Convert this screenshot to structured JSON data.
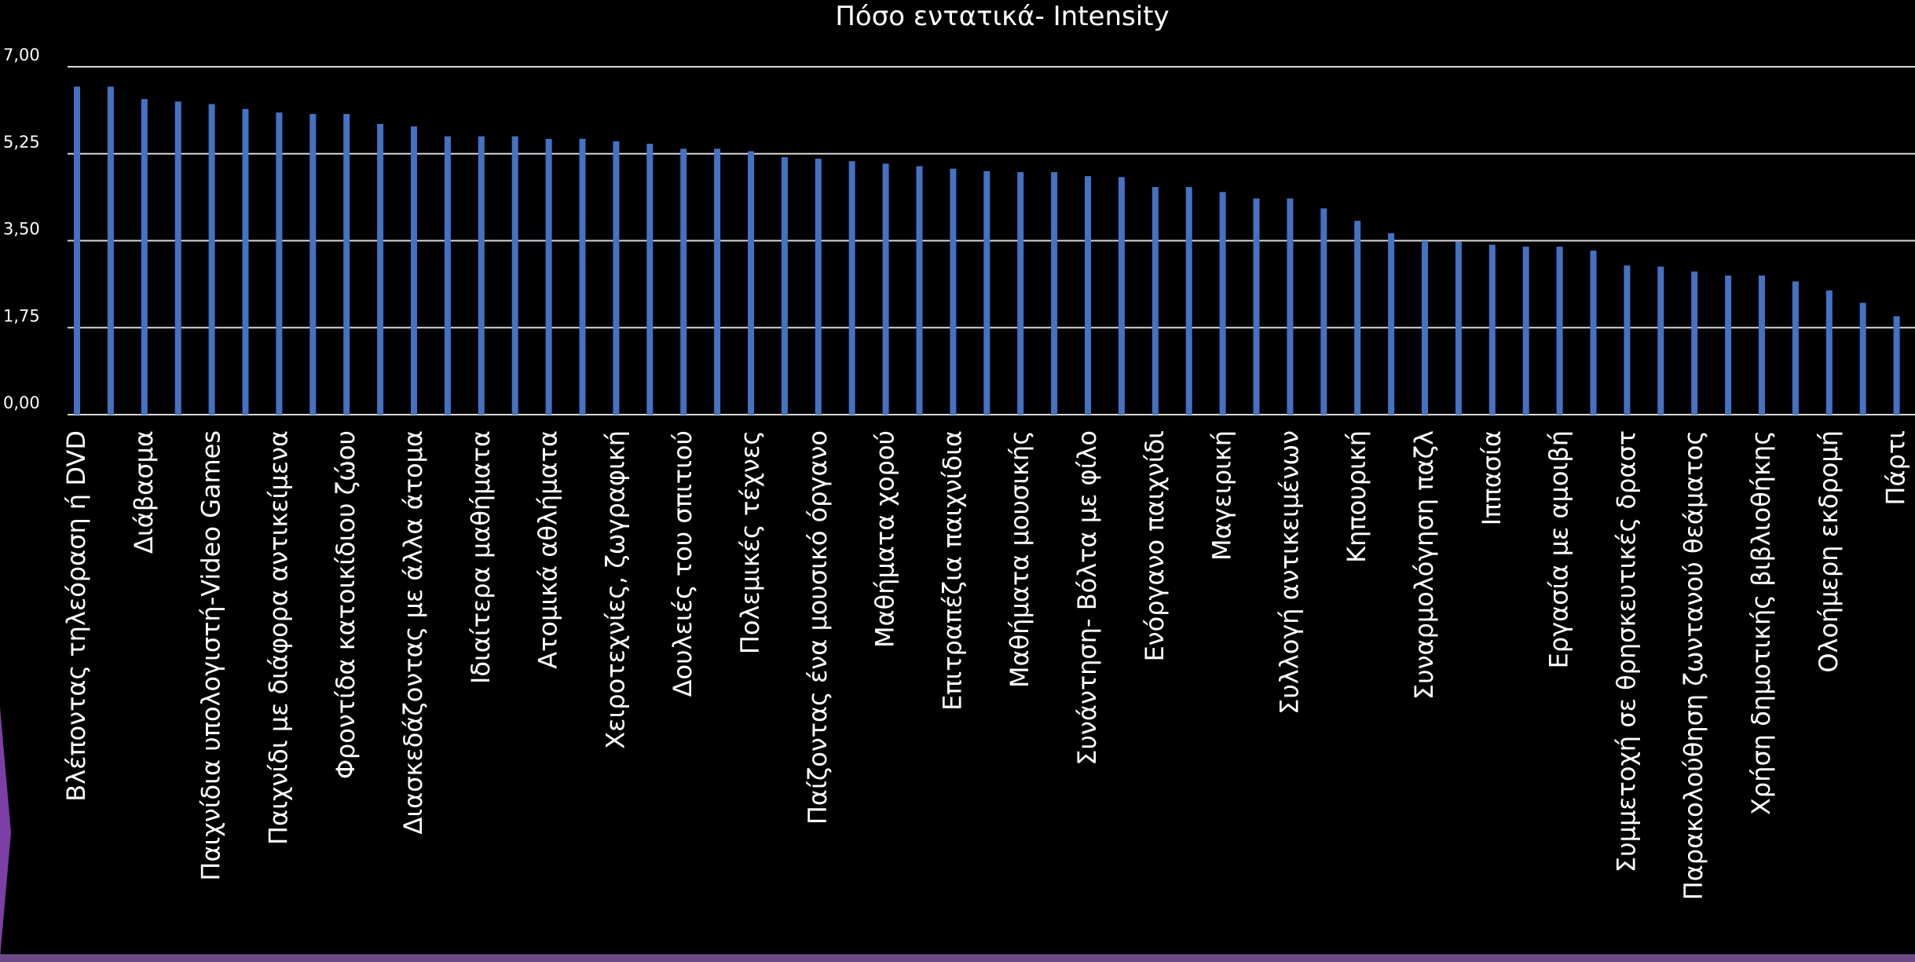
{
  "chart_data": {
    "type": "bar",
    "title": "Πόσο εντατικά- Intensity",
    "xlabel": "",
    "ylabel": "",
    "ylim": [
      0,
      7
    ],
    "yticks": [
      "0,00",
      "1,75",
      "3,50",
      "5,25",
      "7,00"
    ],
    "grid": true,
    "bar_color": "#4472c4",
    "categories": [
      "Βλέποντας τηλεόραση ή DVD",
      "",
      "Διάβασμα",
      "",
      "Παιχνίδια υπολογιστή-Video Games",
      "",
      "Παιχνίδι με διάφορα αντικείμενα",
      "",
      "Φροντίδα κατοικίδιου ζώου",
      "",
      "Διασκεδάζοντας με άλλα άτομα",
      "",
      "Ιδιαίτερα μαθήματα",
      "",
      "Ατομικά αθλήματα",
      "",
      "Χειροτεχνίες, ζωγραφική",
      "",
      "Δουλειές του σπιτιού",
      "",
      "Πολεμικές τέχνες",
      "",
      "Παίζοντας ένα μουσικό όργανο",
      "",
      "Μαθήματα χορού",
      "",
      "Επιτραπέζια παιχνίδια",
      "",
      "Μαθήματα μουσικής",
      "",
      "Συνάντηση- Βόλτα με φίλο",
      "",
      "Ενόργανο παιχνίδι",
      "",
      "Μαγειρική",
      "",
      "Συλλογή αντικειμένων",
      "",
      "Κηπουρική",
      "",
      "Συναρμολόγηση παζλ",
      "",
      "Ιππασία",
      "",
      "Εργασία με αμοιβή",
      "",
      "Συμμετοχή σε θρησκευτικές δραστ",
      "",
      "Παρακολούθηση ζωντανού θεάματος",
      "",
      "Χρήση δημοτικής βιβλιοθήκης",
      "",
      "Ολοήμερη εκδρομή",
      "",
      "Πάρτι"
    ],
    "values": [
      6.6,
      6.6,
      6.35,
      6.3,
      6.25,
      6.15,
      6.08,
      6.05,
      6.05,
      5.85,
      5.8,
      5.6,
      5.6,
      5.6,
      5.55,
      5.55,
      5.5,
      5.45,
      5.35,
      5.35,
      5.3,
      5.18,
      5.15,
      5.1,
      5.05,
      5.0,
      4.95,
      4.9,
      4.88,
      4.88,
      4.8,
      4.78,
      4.58,
      4.58,
      4.48,
      4.35,
      4.35,
      4.15,
      3.9,
      3.65,
      3.5,
      3.48,
      3.42,
      3.38,
      3.38,
      3.3,
      3.0,
      2.98,
      2.88,
      2.8,
      2.8,
      2.68,
      2.5,
      2.25,
      1.98
    ]
  }
}
